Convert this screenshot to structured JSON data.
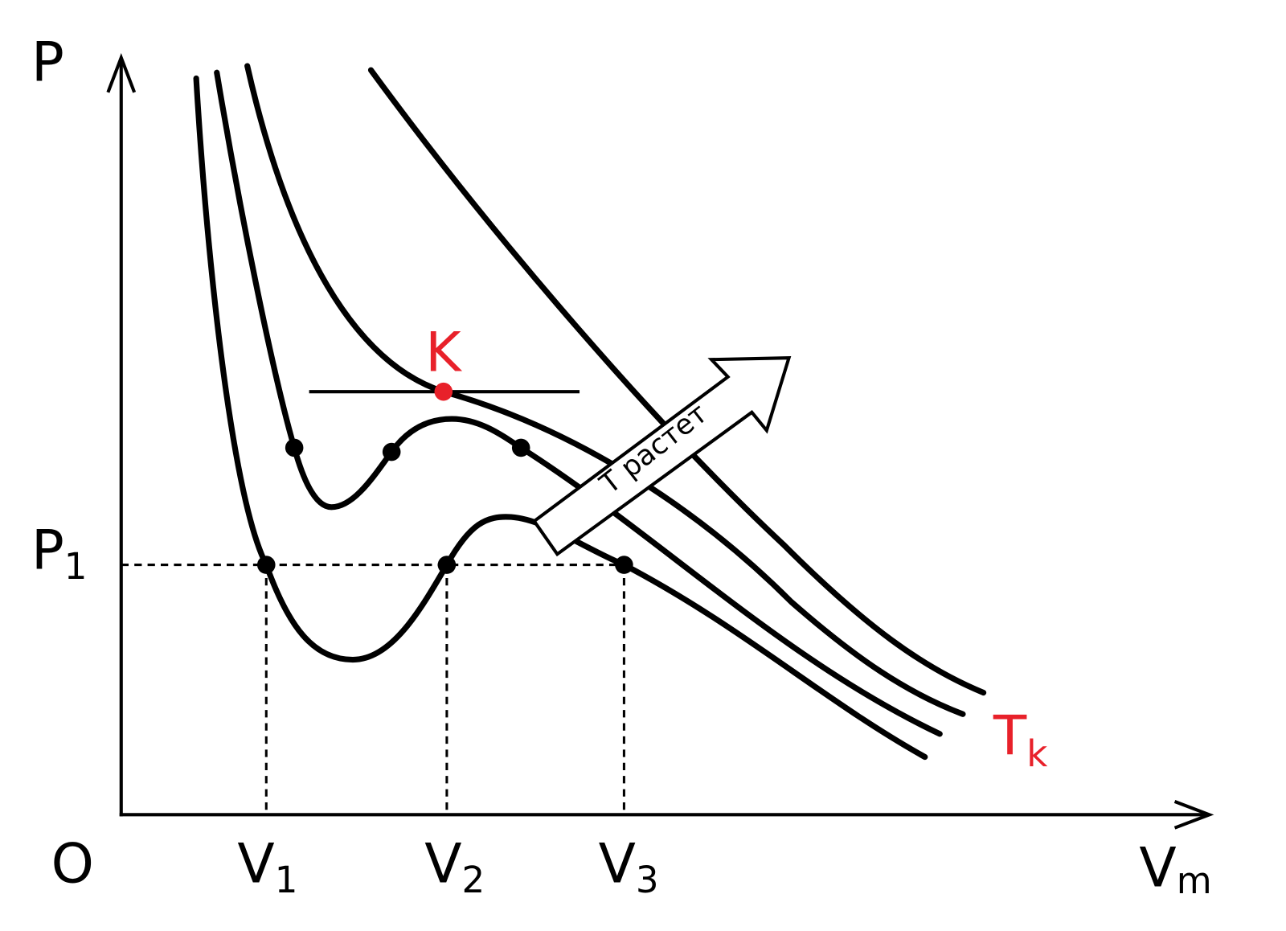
{
  "axes": {
    "y_label": "P",
    "x_label": {
      "main": "V",
      "sub": "m"
    },
    "origin": "O"
  },
  "levels": {
    "pressure": {
      "main": "P",
      "sub": "1"
    },
    "volumes": [
      {
        "main": "V",
        "sub": "1"
      },
      {
        "main": "V",
        "sub": "2"
      },
      {
        "main": "V",
        "sub": "3"
      }
    ]
  },
  "critical_point": "K",
  "critical_temperature": {
    "main": "T",
    "sub": "k"
  },
  "arrow_label": "T растет"
}
